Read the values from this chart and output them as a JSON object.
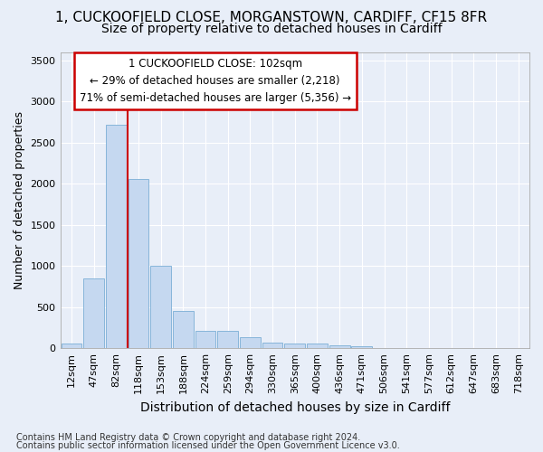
{
  "title_line1": "1, CUCKOOFIELD CLOSE, MORGANSTOWN, CARDIFF, CF15 8FR",
  "title_line2": "Size of property relative to detached houses in Cardiff",
  "xlabel": "Distribution of detached houses by size in Cardiff",
  "ylabel": "Number of detached properties",
  "categories": [
    "12sqm",
    "47sqm",
    "82sqm",
    "118sqm",
    "153sqm",
    "188sqm",
    "224sqm",
    "259sqm",
    "294sqm",
    "330sqm",
    "365sqm",
    "400sqm",
    "436sqm",
    "471sqm",
    "506sqm",
    "541sqm",
    "577sqm",
    "612sqm",
    "647sqm",
    "683sqm",
    "718sqm"
  ],
  "values": [
    60,
    850,
    2720,
    2060,
    1000,
    450,
    215,
    215,
    135,
    70,
    55,
    55,
    30,
    20,
    0,
    0,
    0,
    0,
    0,
    0,
    0
  ],
  "bar_color": "#c5d8f0",
  "bar_edge_color": "#7aaed6",
  "vline_x_index": 2.5,
  "vline_color": "#cc0000",
  "ylim": [
    0,
    3600
  ],
  "yticks": [
    0,
    500,
    1000,
    1500,
    2000,
    2500,
    3000,
    3500
  ],
  "annotation_line1": "1 CUCKOOFIELD CLOSE: 102sqm",
  "annotation_line2": "← 29% of detached houses are smaller (2,218)",
  "annotation_line3": "71% of semi-detached houses are larger (5,356) →",
  "annotation_box_facecolor": "#ffffff",
  "annotation_box_edgecolor": "#cc0000",
  "footnote1": "Contains HM Land Registry data © Crown copyright and database right 2024.",
  "footnote2": "Contains public sector information licensed under the Open Government Licence v3.0.",
  "bg_color": "#e8eef8",
  "grid_color": "#ffffff",
  "title1_fontsize": 11,
  "title2_fontsize": 10,
  "xlabel_fontsize": 10,
  "ylabel_fontsize": 9,
  "tick_fontsize": 8,
  "annotation_fontsize": 8.5,
  "footnote_fontsize": 7
}
